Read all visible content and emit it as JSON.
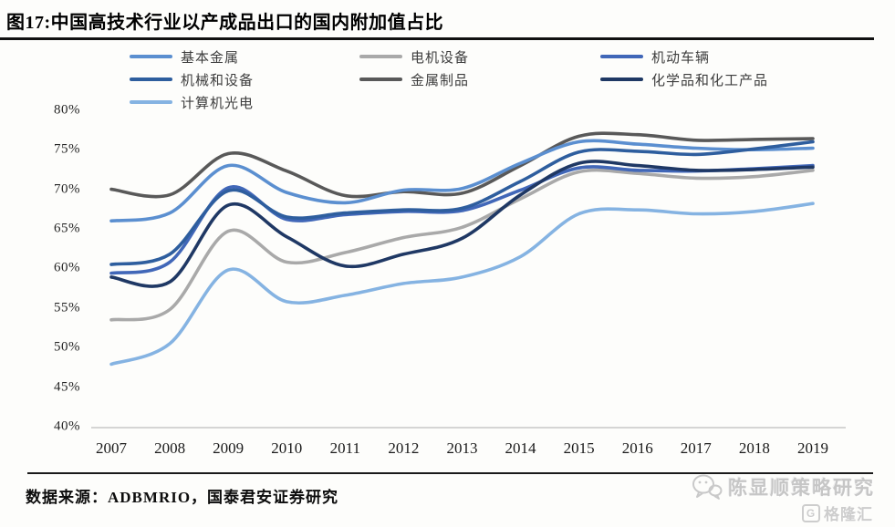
{
  "title": "图17:中国高技术行业以产成品出口的国内附加值占比",
  "legend": [
    {
      "label": "基本金属",
      "color": "#5b8fd0",
      "col": 0,
      "row": 0
    },
    {
      "label": "电机设备",
      "color": "#a9a9a9",
      "col": 1,
      "row": 0
    },
    {
      "label": "机动车辆",
      "color": "#4167b8",
      "col": 2,
      "row": 0
    },
    {
      "label": "机械和设备",
      "color": "#2e5e9e",
      "col": 0,
      "row": 1
    },
    {
      "label": "金属制品",
      "color": "#595959",
      "col": 1,
      "row": 1
    },
    {
      "label": "化学品和化工产品",
      "color": "#1f3864",
      "col": 2,
      "row": 1
    },
    {
      "label": "计算机光电",
      "color": "#85b3e2",
      "col": 0,
      "row": 2
    }
  ],
  "chart_data": {
    "type": "line",
    "x": [
      2007,
      2008,
      2009,
      2010,
      2011,
      2012,
      2013,
      2014,
      2015,
      2016,
      2017,
      2018,
      2019
    ],
    "x_tick_labels": [
      "2007",
      "2008",
      "2009",
      "2010",
      "2011",
      "2012",
      "2013",
      "2014",
      "2015",
      "2016",
      "2017",
      "2018",
      "2019"
    ],
    "y_tick_labels": [
      "40%",
      "45%",
      "50%",
      "55%",
      "60%",
      "65%",
      "70%",
      "75%",
      "80%"
    ],
    "ylim": [
      40,
      80
    ],
    "y_unit": "percent",
    "grid": false,
    "legend_position": "top",
    "axis_color": "#c8c8c8",
    "line_width": 3.6,
    "series": [
      {
        "name": "电机设备",
        "color": "#a9a9a9",
        "values": [
          53.5,
          54.8,
          64.7,
          60.8,
          62.0,
          63.9,
          65.2,
          68.8,
          72.2,
          72.0,
          71.4,
          71.6,
          72.4
        ]
      },
      {
        "name": "计算机光电",
        "color": "#85b3e2",
        "values": [
          47.9,
          50.5,
          59.8,
          55.8,
          56.6,
          58.1,
          58.9,
          61.5,
          66.9,
          67.4,
          66.9,
          67.2,
          68.2
        ]
      },
      {
        "name": "金属制品",
        "color": "#595959",
        "values": [
          70.0,
          69.3,
          74.5,
          72.3,
          69.2,
          69.7,
          69.5,
          73.0,
          76.7,
          76.9,
          76.2,
          76.3,
          76.4
        ]
      },
      {
        "name": "基本金属",
        "color": "#5b8fd0",
        "values": [
          66.0,
          67.0,
          73.0,
          69.6,
          68.3,
          69.9,
          70.1,
          73.3,
          76.0,
          75.7,
          75.2,
          75.0,
          75.2
        ]
      },
      {
        "name": "机动车辆",
        "color": "#4167b8",
        "values": [
          59.4,
          60.8,
          70.2,
          66.2,
          66.8,
          67.2,
          67.3,
          69.9,
          72.7,
          72.4,
          72.3,
          72.6,
          73.0
        ]
      },
      {
        "name": "机械和设备",
        "color": "#2e5e9e",
        "values": [
          60.5,
          61.8,
          69.8,
          66.5,
          67.0,
          67.4,
          67.6,
          71.0,
          74.7,
          74.8,
          74.4,
          75.1,
          76.0
        ]
      },
      {
        "name": "化学品和化工产品",
        "color": "#1f3864",
        "values": [
          58.9,
          58.3,
          68.0,
          64.0,
          60.3,
          61.8,
          63.8,
          69.3,
          73.3,
          73.0,
          72.4,
          72.5,
          72.8
        ]
      }
    ]
  },
  "footer": {
    "source_text": "数据来源：ADBMRIO，国泰君安证券研究"
  },
  "watermark": {
    "line1": "陈显顺策略研究",
    "logo_letter": "G",
    "logo_text": "格隆汇"
  }
}
